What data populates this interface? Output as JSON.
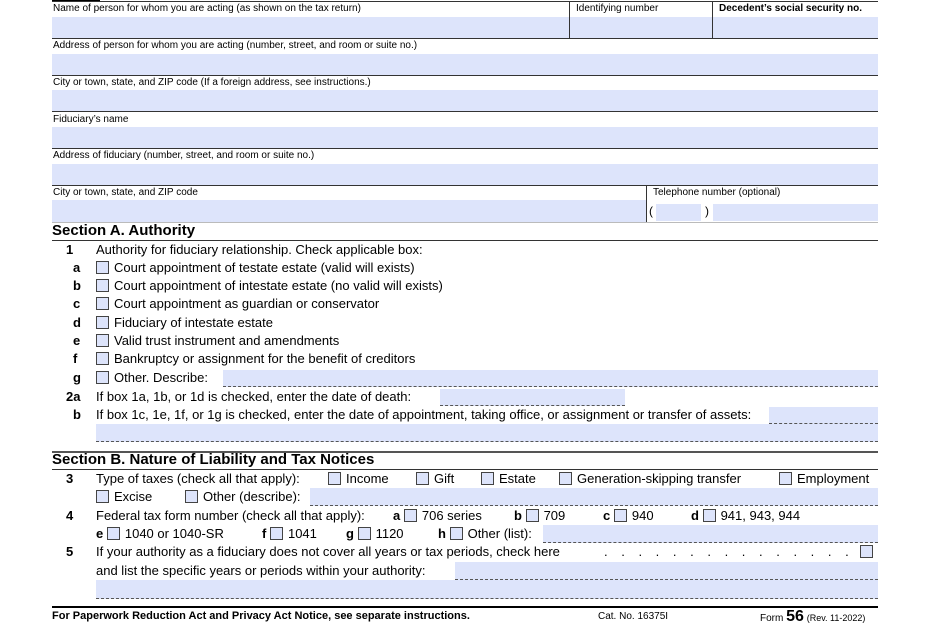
{
  "header": {
    "name_label": "Name of person for whom you are acting (as shown on the tax return)",
    "id_label": "Identifying number",
    "ssn_label": "Decedent’s social security no.",
    "address_label": "Address of person for whom you are acting (number, street, and room or suite no.)",
    "city_label": "City or town, state, and ZIP code (If a foreign address, see instructions.)",
    "fid_name_label": "Fiduciary’s name",
    "fid_address_label": "Address of fiduciary (number, street, and room or suite no.)",
    "fid_city_label": "City or town, state, and ZIP code",
    "phone_label": "Telephone number (optional)",
    "phone_open": "(",
    "phone_close": ")"
  },
  "sectionA": {
    "title": "Section A.  Authority",
    "l1_num": "1",
    "l1_text": "Authority for fiduciary relationship. Check applicable box:",
    "items": [
      {
        "letter": "a",
        "text": "Court appointment of testate estate (valid will exists)"
      },
      {
        "letter": "b",
        "text": "Court appointment of intestate estate (no valid will exists)"
      },
      {
        "letter": "c",
        "text": "Court appointment as guardian or conservator"
      },
      {
        "letter": "d",
        "text": "Fiduciary of intestate estate"
      },
      {
        "letter": "e",
        "text": "Valid trust instrument and amendments"
      },
      {
        "letter": "f",
        "text": "Bankruptcy or assignment for the benefit of creditors"
      },
      {
        "letter": "g",
        "text": "Other. Describe:"
      }
    ],
    "l2a_num": "2a",
    "l2a_text": "If box 1a, 1b, or 1d is checked, enter the date of death:",
    "l2b_num": "b",
    "l2b_text": "If box 1c, 1e, 1f, or 1g is checked, enter the date of appointment, taking office, or assignment or transfer of assets:"
  },
  "sectionB": {
    "title": "Section B.  Nature of Liability and Tax Notices",
    "l3_num": "3",
    "l3_text": "Type of taxes (check all that apply):",
    "taxes": [
      "Income",
      "Gift",
      "Estate",
      "Generation-skipping transfer",
      "Employment",
      "Excise",
      "Other (describe):"
    ],
    "l4_num": "4",
    "l4_text": "Federal tax form number (check all that apply):",
    "forms": [
      {
        "letter": "a",
        "text": "706 series"
      },
      {
        "letter": "b",
        "text": "709"
      },
      {
        "letter": "c",
        "text": "940"
      },
      {
        "letter": "d",
        "text": "941, 943, 944"
      },
      {
        "letter": "e",
        "text": "1040 or 1040-SR"
      },
      {
        "letter": "f",
        "text": "1041"
      },
      {
        "letter": "g",
        "text": "1120"
      },
      {
        "letter": "h",
        "text": "Other (list):"
      }
    ],
    "l5_num": "5",
    "l5_text": "If your authority as a fiduciary does not cover all years or tax periods, check here",
    "l5_dots": ". . . . . . . . . . . . . . .",
    "l5_text2": "and list the specific years or periods within your authority:"
  },
  "footer": {
    "notice": "For Paperwork Reduction Act and Privacy Act Notice, see separate instructions.",
    "cat": "Cat. No. 16375I",
    "form_prefix": "Form",
    "form_num": "56",
    "rev": "(Rev. 11-2022)"
  }
}
